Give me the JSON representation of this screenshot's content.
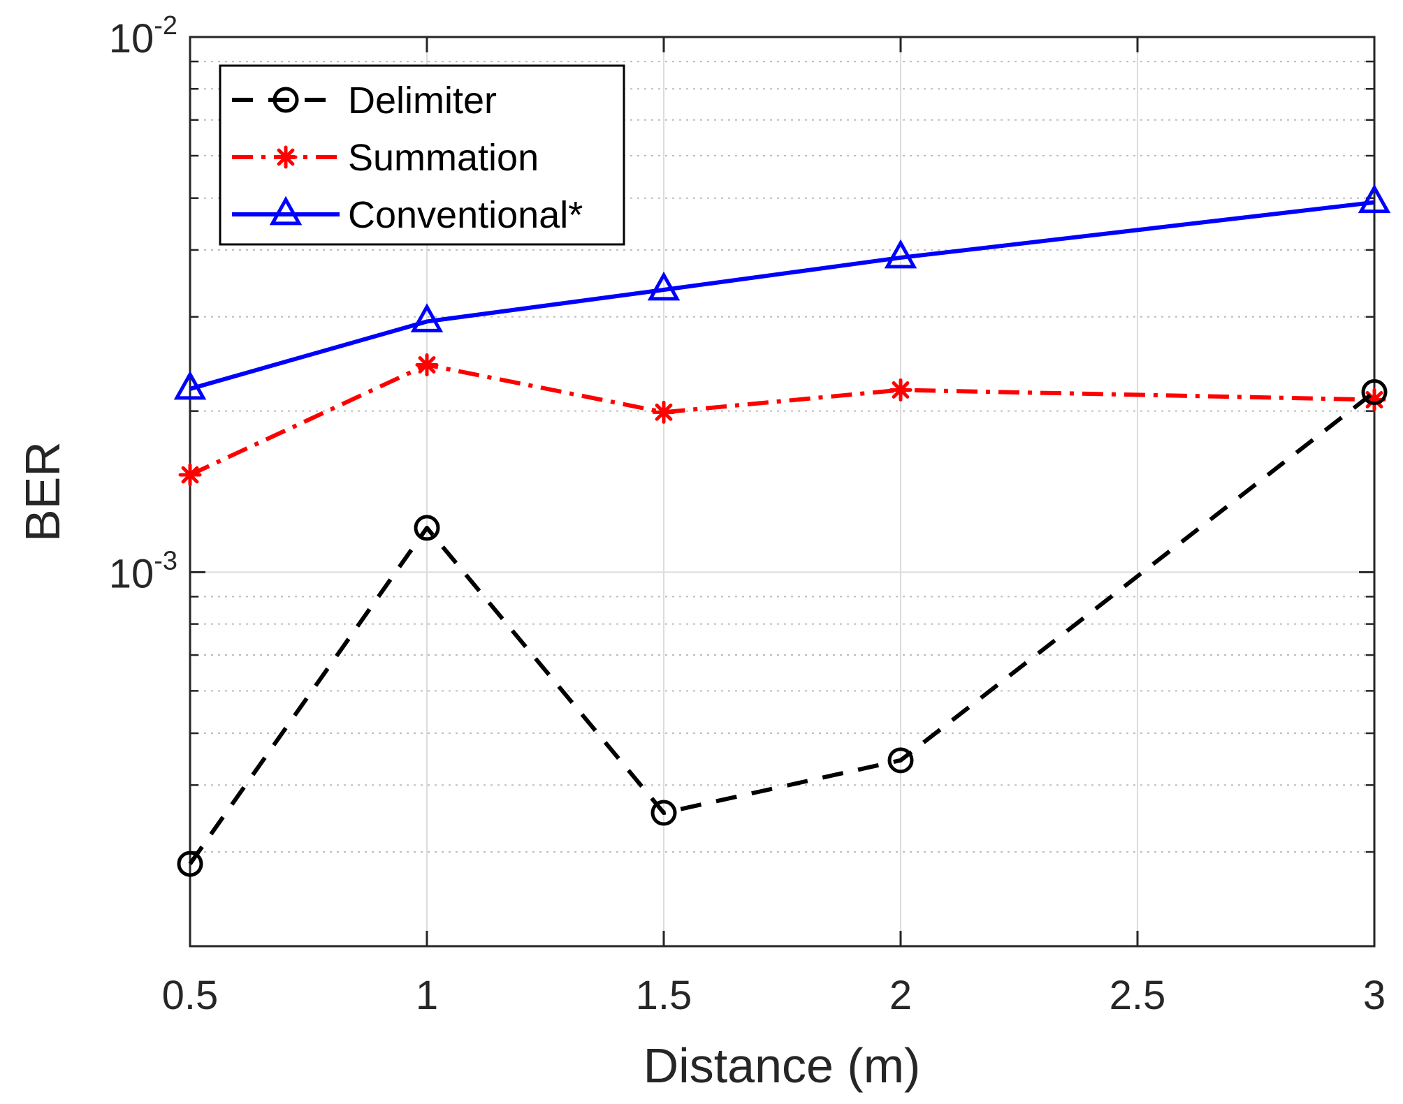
{
  "chart_data": {
    "type": "line",
    "title": "",
    "xlabel": "Distance (m)",
    "ylabel": "BER",
    "xscale": "linear",
    "yscale": "log",
    "xlim": [
      0.5,
      3
    ],
    "ylim": [
      0.0002,
      0.01
    ],
    "xticks": [
      0.5,
      1,
      1.5,
      2,
      2.5,
      3
    ],
    "xtick_labels": [
      "0.5",
      "1",
      "1.5",
      "2",
      "2.5",
      "3"
    ],
    "yticks": [
      {
        "value": 0.001,
        "base": "10",
        "exp": "-3"
      },
      {
        "value": 0.01,
        "base": "10",
        "exp": "-2"
      }
    ],
    "grid": true,
    "legend_position": "top-left",
    "series": [
      {
        "name": "Delimiter",
        "color": "#000000",
        "line_style": "dashed",
        "marker": "circle",
        "x": [
          0.5,
          1,
          1.5,
          2,
          3
        ],
        "y": [
          0.000285,
          0.00121,
          0.000355,
          0.000445,
          0.00217
        ]
      },
      {
        "name": "Summation",
        "color": "#ff0000",
        "line_style": "dash-dot",
        "marker": "asterisk",
        "x": [
          0.5,
          1,
          1.5,
          2,
          3
        ],
        "y": [
          0.00152,
          0.00244,
          0.00199,
          0.00219,
          0.0021
        ]
      },
      {
        "name": "Conventional*",
        "color": "#0000ff",
        "line_style": "solid",
        "marker": "triangle",
        "x": [
          0.5,
          1,
          1.5,
          2,
          3
        ],
        "y": [
          0.0022,
          0.00294,
          0.00337,
          0.00387,
          0.00491
        ]
      }
    ]
  }
}
